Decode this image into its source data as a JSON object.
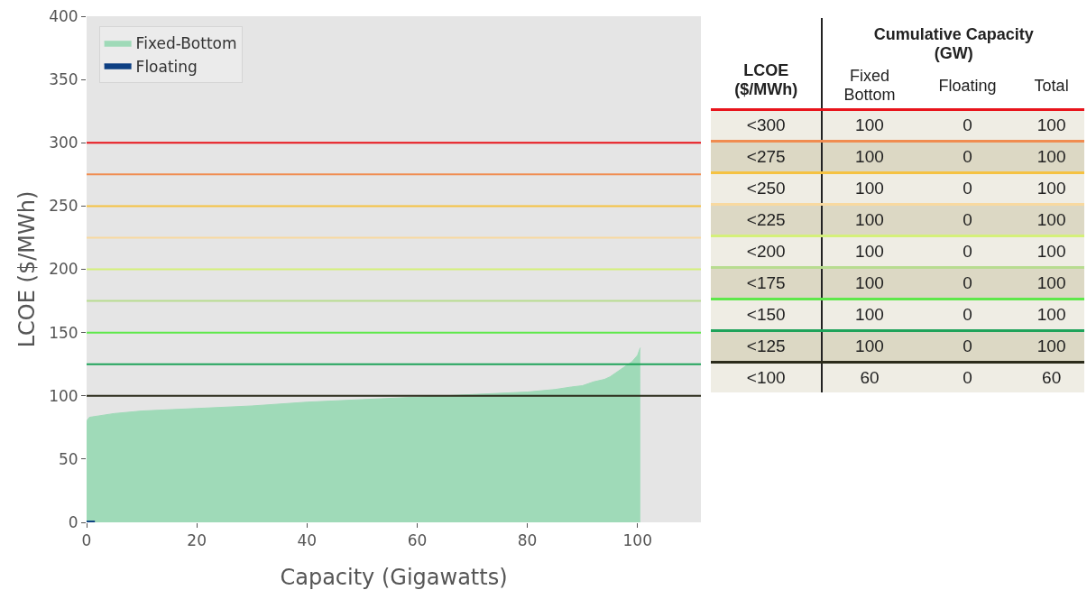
{
  "chart_data": [
    {
      "type": "area",
      "xlabel": "Capacity (Gigawatts)",
      "ylabel": "LCOE ($/MWh)",
      "xlim": [
        0,
        111.5
      ],
      "ylim": [
        0,
        400
      ],
      "xticks": [
        0,
        20,
        40,
        60,
        80,
        100
      ],
      "yticks": [
        0,
        50,
        100,
        150,
        200,
        250,
        300,
        350,
        400
      ],
      "grid": false,
      "legend": "top left",
      "series": [
        {
          "name": "Fixed-Bottom",
          "color": "#9fdab8",
          "x": [
            0,
            0.5,
            2,
            5,
            10,
            20,
            30,
            40,
            50,
            60,
            70,
            80,
            85,
            88,
            90,
            92,
            94,
            95,
            96,
            97,
            98,
            99,
            100,
            100.5
          ],
          "values": [
            80,
            83,
            84,
            86,
            88,
            90,
            92,
            95,
            97,
            99,
            101,
            103,
            105,
            107,
            108,
            111,
            113,
            115,
            118,
            121,
            124,
            127,
            132,
            138
          ]
        },
        {
          "name": "Floating",
          "color": "#0d3f82",
          "x": [
            0,
            1.5
          ],
          "values": [
            1,
            1
          ]
        }
      ],
      "ref_lines": [
        {
          "axis": "y",
          "value": 300,
          "color": "#e8141b"
        },
        {
          "axis": "y",
          "value": 275,
          "color": "#f08c50"
        },
        {
          "axis": "y",
          "value": 250,
          "color": "#f5c242"
        },
        {
          "axis": "y",
          "value": 225,
          "color": "#f8d9a0"
        },
        {
          "axis": "y",
          "value": 200,
          "color": "#d4f07a"
        },
        {
          "axis": "y",
          "value": 175,
          "color": "#b8dc90"
        },
        {
          "axis": "y",
          "value": 150,
          "color": "#5ee84a"
        },
        {
          "axis": "y",
          "value": 125,
          "color": "#1fa35a"
        },
        {
          "axis": "y",
          "value": 100,
          "color": "#2b2b1a"
        }
      ]
    },
    {
      "type": "other",
      "title": "Cumulative Capacity (GW)",
      "categories": [
        "LCOE ($/MWh)",
        "Fixed Bottom",
        "Floating",
        "Total"
      ],
      "y_categories": [
        "<300",
        "<275",
        "<250",
        "<225",
        "<200",
        "<175",
        "<150",
        "<125",
        "<100"
      ],
      "cell_labels": [
        [
          "100",
          "0",
          "100"
        ],
        [
          "100",
          "0",
          "100"
        ],
        [
          "100",
          "0",
          "100"
        ],
        [
          "100",
          "0",
          "100"
        ],
        [
          "100",
          "0",
          "100"
        ],
        [
          "100",
          "0",
          "100"
        ],
        [
          "100",
          "0",
          "100"
        ],
        [
          "100",
          "0",
          "100"
        ],
        [
          "60",
          "0",
          "60"
        ]
      ]
    }
  ]
}
